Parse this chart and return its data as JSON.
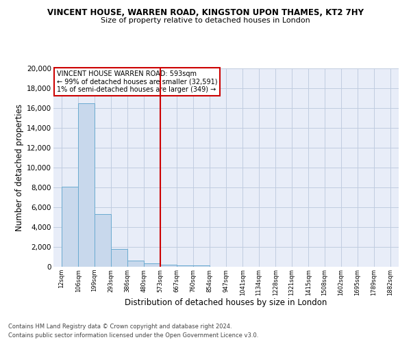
{
  "title": "VINCENT HOUSE, WARREN ROAD, KINGSTON UPON THAMES, KT2 7HY",
  "subtitle": "Size of property relative to detached houses in London",
  "xlabel": "Distribution of detached houses by size in London",
  "ylabel": "Number of detached properties",
  "bar_color": "#c8d8ec",
  "bar_edge_color": "#6aaad0",
  "grid_color": "#c0cce0",
  "background_color": "#e8edf8",
  "vline_color": "#cc0000",
  "vline_x": 573,
  "bin_edges": [
    12,
    106,
    199,
    293,
    386,
    480,
    573,
    667,
    760,
    854,
    947,
    1041,
    1134,
    1228,
    1321,
    1415,
    1508,
    1602,
    1695,
    1789,
    1882
  ],
  "bin_labels": [
    "12sqm",
    "106sqm",
    "199sqm",
    "293sqm",
    "386sqm",
    "480sqm",
    "573sqm",
    "667sqm",
    "760sqm",
    "854sqm",
    "947sqm",
    "1041sqm",
    "1134sqm",
    "1228sqm",
    "1321sqm",
    "1415sqm",
    "1508sqm",
    "1602sqm",
    "1695sqm",
    "1789sqm",
    "1882sqm"
  ],
  "counts": [
    8100,
    16500,
    5300,
    1800,
    650,
    320,
    230,
    130,
    120,
    0,
    0,
    0,
    0,
    0,
    0,
    0,
    0,
    0,
    0,
    0
  ],
  "ylim": [
    0,
    20000
  ],
  "yticks": [
    0,
    2000,
    4000,
    6000,
    8000,
    10000,
    12000,
    14000,
    16000,
    18000,
    20000
  ],
  "annotation_title": "VINCENT HOUSE WARREN ROAD: 593sqm",
  "annotation_line1": "← 99% of detached houses are smaller (32,591)",
  "annotation_line2": "1% of semi-detached houses are larger (349) →",
  "footer_line1": "Contains HM Land Registry data © Crown copyright and database right 2024.",
  "footer_line2": "Contains public sector information licensed under the Open Government Licence v3.0."
}
